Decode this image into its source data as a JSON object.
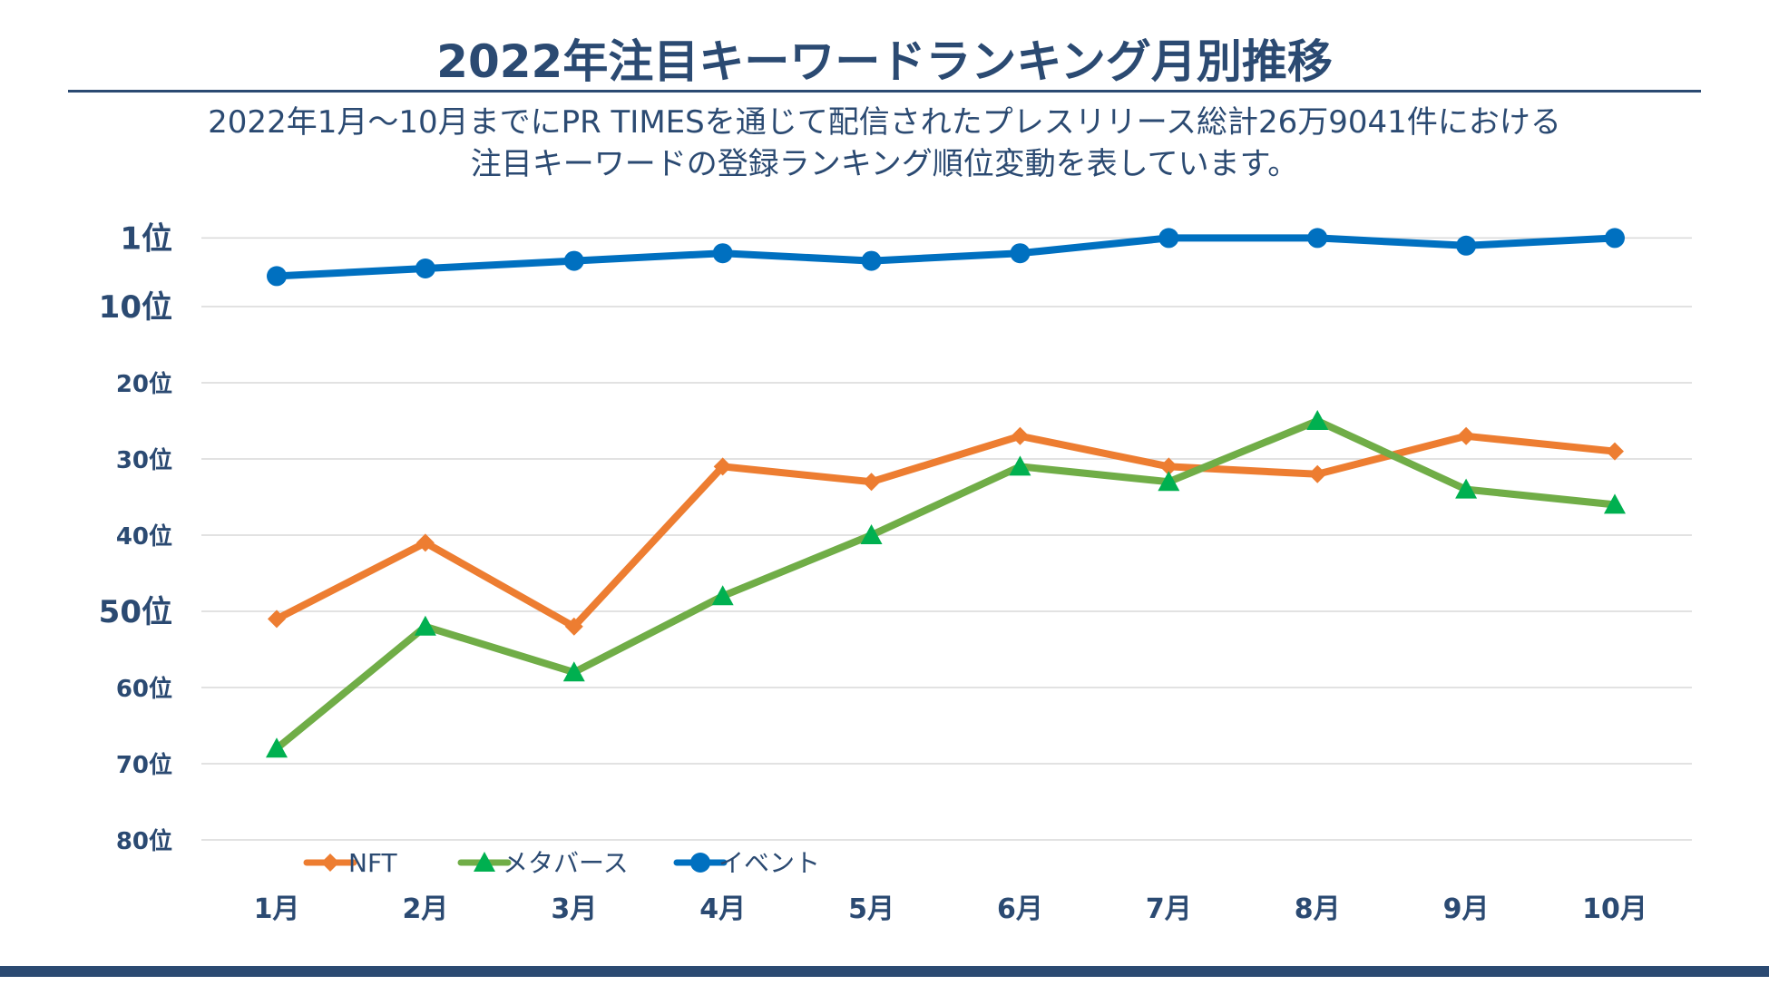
{
  "header": {
    "title": "2022年注目キーワードランキング月別推移",
    "subtitle_line1": "2022年1月～10月までにPR TIMESを通じて配信されたプレスリリース総計26万9041件における",
    "subtitle_line2": "注目キーワードの登録ランキング順位変動を表しています。"
  },
  "colors": {
    "text": "#2b4a72",
    "grid": "#d9d9d9",
    "nft": "#ed7d31",
    "metaverse_line": "#70ad47",
    "metaverse_marker": "#00b050",
    "event": "#0070c0"
  },
  "chart_data": {
    "type": "line",
    "title": "2022年注目キーワードランキング月別推移",
    "categories": [
      "1月",
      "2月",
      "3月",
      "4月",
      "5月",
      "6月",
      "7月",
      "8月",
      "9月",
      "10月"
    ],
    "y_ticks": [
      "1位",
      "10位",
      "20位",
      "30位",
      "40位",
      "50位",
      "60位",
      "70位",
      "80位"
    ],
    "y_tick_values": [
      1,
      10,
      20,
      30,
      40,
      50,
      60,
      70,
      80
    ],
    "y_inverted": true,
    "ylim": [
      0,
      80
    ],
    "grid": true,
    "legend_position": "bottom-left",
    "series": [
      {
        "name": "NFT",
        "marker": "diamond",
        "color": "#ed7d31",
        "values": [
          51,
          41,
          52,
          31,
          33,
          27,
          31,
          32,
          27,
          29
        ]
      },
      {
        "name": "メタバース",
        "marker": "triangle",
        "color": "#70ad47",
        "marker_color": "#00b050",
        "values": [
          68,
          52,
          58,
          48,
          40,
          31,
          33,
          25,
          34,
          36
        ]
      },
      {
        "name": "イベント",
        "marker": "circle",
        "color": "#0070c0",
        "values": [
          6,
          5,
          4,
          3,
          4,
          3,
          1,
          1,
          2,
          1
        ]
      }
    ]
  }
}
